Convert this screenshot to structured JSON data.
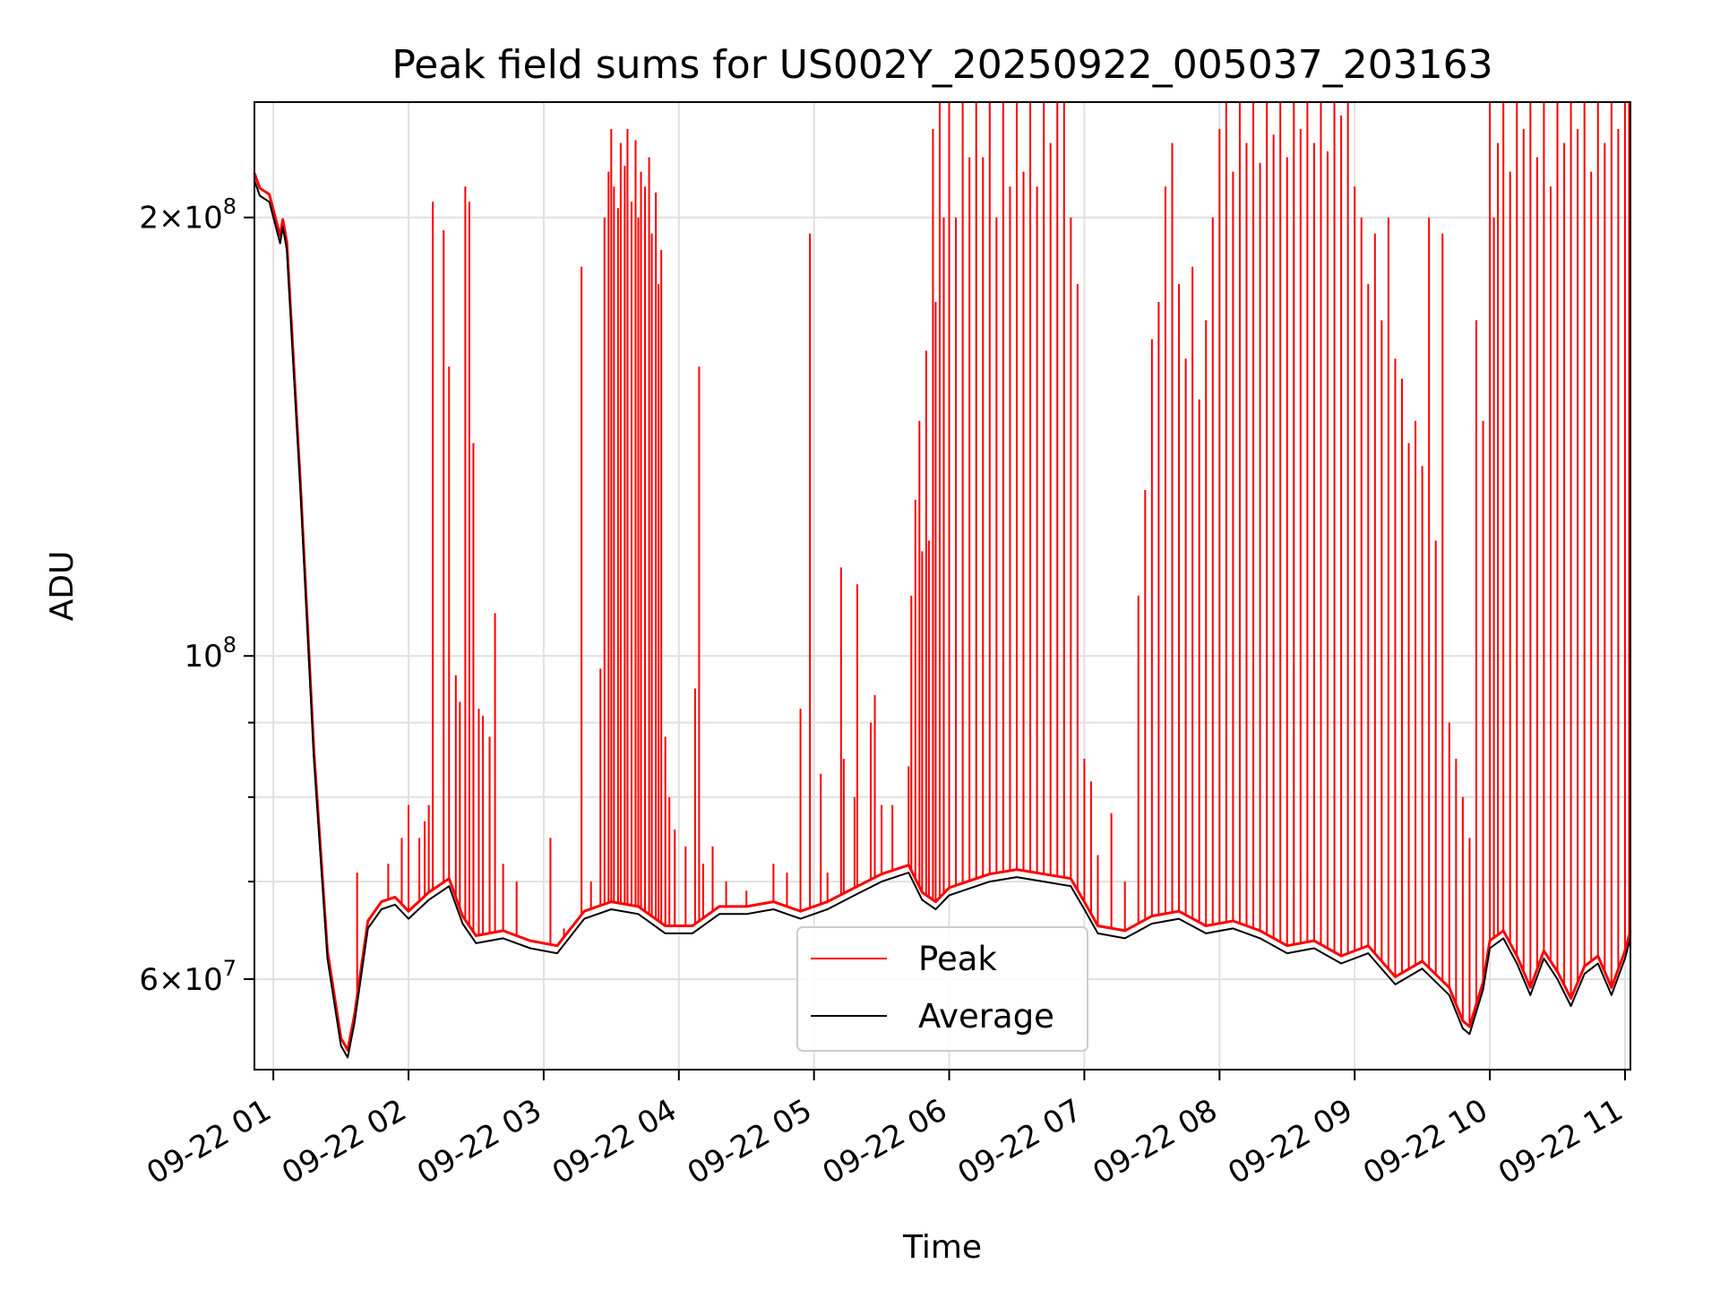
{
  "chart_data": {
    "type": "line",
    "title": "Peak field sums for US002Y_20250922_005037_203163",
    "xlabel": "Time",
    "ylabel": "ADU",
    "yscale": "log",
    "xlim": [
      0.86,
      11.04
    ],
    "ylim": [
      52000000,
      240000000
    ],
    "x_ticks": [
      {
        "value": 1,
        "label": "09-22 01"
      },
      {
        "value": 2,
        "label": "09-22 02"
      },
      {
        "value": 3,
        "label": "09-22 03"
      },
      {
        "value": 4,
        "label": "09-22 04"
      },
      {
        "value": 5,
        "label": "09-22 05"
      },
      {
        "value": 6,
        "label": "09-22 06"
      },
      {
        "value": 7,
        "label": "09-22 07"
      },
      {
        "value": 8,
        "label": "09-22 08"
      },
      {
        "value": 9,
        "label": "09-22 09"
      },
      {
        "value": 10,
        "label": "09-22 10"
      },
      {
        "value": 11,
        "label": "09-22 11"
      }
    ],
    "y_ticks_major": [
      {
        "value": 60000000,
        "label_base": "6×10",
        "label_exp": "7"
      },
      {
        "value": 100000000,
        "label_base": "10",
        "label_exp": "8"
      },
      {
        "value": 200000000,
        "label_base": "2×10",
        "label_exp": "8"
      }
    ],
    "y_ticks_minor": [
      70000000,
      80000000,
      90000000
    ],
    "grid": true,
    "legend_position": "lower-center",
    "series": [
      {
        "name": "Average",
        "color": "#000000",
        "points": [
          [
            0.86,
            212000000
          ],
          [
            0.9,
            207000000
          ],
          [
            0.97,
            205000000
          ],
          [
            1.05,
            192000000
          ],
          [
            1.07,
            197000000
          ],
          [
            1.1,
            190000000
          ],
          [
            1.2,
            130000000
          ],
          [
            1.3,
            85000000
          ],
          [
            1.4,
            62000000
          ],
          [
            1.5,
            54000000
          ],
          [
            1.55,
            53000000
          ],
          [
            1.6,
            56000000
          ],
          [
            1.7,
            65000000
          ],
          [
            1.8,
            67000000
          ],
          [
            1.9,
            67500000
          ],
          [
            2.0,
            66000000
          ],
          [
            2.15,
            68000000
          ],
          [
            2.3,
            69500000
          ],
          [
            2.4,
            65500000
          ],
          [
            2.5,
            63500000
          ],
          [
            2.7,
            64000000
          ],
          [
            2.9,
            63000000
          ],
          [
            3.1,
            62500000
          ],
          [
            3.3,
            66000000
          ],
          [
            3.5,
            67000000
          ],
          [
            3.7,
            66500000
          ],
          [
            3.9,
            64500000
          ],
          [
            4.1,
            64500000
          ],
          [
            4.3,
            66500000
          ],
          [
            4.5,
            66500000
          ],
          [
            4.7,
            67000000
          ],
          [
            4.9,
            66000000
          ],
          [
            5.1,
            67000000
          ],
          [
            5.3,
            68500000
          ],
          [
            5.5,
            70000000
          ],
          [
            5.7,
            71000000
          ],
          [
            5.8,
            68000000
          ],
          [
            5.9,
            67000000
          ],
          [
            6.0,
            68500000
          ],
          [
            6.1,
            69000000
          ],
          [
            6.3,
            70000000
          ],
          [
            6.5,
            70500000
          ],
          [
            6.7,
            70000000
          ],
          [
            6.9,
            69500000
          ],
          [
            7.0,
            67000000
          ],
          [
            7.1,
            64500000
          ],
          [
            7.3,
            64000000
          ],
          [
            7.5,
            65500000
          ],
          [
            7.7,
            66000000
          ],
          [
            7.9,
            64500000
          ],
          [
            8.1,
            65000000
          ],
          [
            8.3,
            64000000
          ],
          [
            8.5,
            62500000
          ],
          [
            8.7,
            63000000
          ],
          [
            8.9,
            61500000
          ],
          [
            9.1,
            62500000
          ],
          [
            9.3,
            59500000
          ],
          [
            9.5,
            61000000
          ],
          [
            9.7,
            58500000
          ],
          [
            9.8,
            55500000
          ],
          [
            9.85,
            55000000
          ],
          [
            9.95,
            59000000
          ],
          [
            10.0,
            63000000
          ],
          [
            10.1,
            64000000
          ],
          [
            10.2,
            61500000
          ],
          [
            10.3,
            58500000
          ],
          [
            10.4,
            62000000
          ],
          [
            10.5,
            60000000
          ],
          [
            10.6,
            57500000
          ],
          [
            10.7,
            60500000
          ],
          [
            10.8,
            61500000
          ],
          [
            10.9,
            58500000
          ],
          [
            11.0,
            62000000
          ],
          [
            11.04,
            64000000
          ]
        ]
      },
      {
        "name": "Peak",
        "color": "#ff0000",
        "baseline_offset": 1.012,
        "spikes": [
          [
            1.62,
            71000000
          ],
          [
            1.85,
            72000000
          ],
          [
            1.95,
            75000000
          ],
          [
            2.0,
            79000000
          ],
          [
            2.08,
            75000000
          ],
          [
            2.12,
            77000000
          ],
          [
            2.15,
            79000000
          ],
          [
            2.18,
            205000000
          ],
          [
            2.26,
            196000000
          ],
          [
            2.3,
            158000000
          ],
          [
            2.35,
            97000000
          ],
          [
            2.38,
            93000000
          ],
          [
            2.42,
            210000000
          ],
          [
            2.45,
            205000000
          ],
          [
            2.48,
            140000000
          ],
          [
            2.52,
            92000000
          ],
          [
            2.55,
            91000000
          ],
          [
            2.6,
            88000000
          ],
          [
            2.64,
            107000000
          ],
          [
            2.7,
            72000000
          ],
          [
            2.8,
            70000000
          ],
          [
            3.05,
            75000000
          ],
          [
            3.15,
            65000000
          ],
          [
            3.28,
            185000000
          ],
          [
            3.35,
            70000000
          ],
          [
            3.42,
            98000000
          ],
          [
            3.45,
            200000000
          ],
          [
            3.48,
            215000000
          ],
          [
            3.5,
            230000000
          ],
          [
            3.52,
            210000000
          ],
          [
            3.55,
            203000000
          ],
          [
            3.57,
            225000000
          ],
          [
            3.6,
            217000000
          ],
          [
            3.62,
            230000000
          ],
          [
            3.65,
            205000000
          ],
          [
            3.68,
            226000000
          ],
          [
            3.7,
            200000000
          ],
          [
            3.72,
            215000000
          ],
          [
            3.75,
            210000000
          ],
          [
            3.78,
            220000000
          ],
          [
            3.8,
            195000000
          ],
          [
            3.83,
            208000000
          ],
          [
            3.85,
            180000000
          ],
          [
            3.87,
            190000000
          ],
          [
            3.9,
            88000000
          ],
          [
            3.93,
            80000000
          ],
          [
            3.97,
            76000000
          ],
          [
            4.05,
            74000000
          ],
          [
            4.12,
            95000000
          ],
          [
            4.15,
            158000000
          ],
          [
            4.18,
            72000000
          ],
          [
            4.25,
            74000000
          ],
          [
            4.35,
            70000000
          ],
          [
            4.5,
            69000000
          ],
          [
            4.7,
            72000000
          ],
          [
            4.8,
            71000000
          ],
          [
            4.9,
            92000000
          ],
          [
            4.97,
            195000000
          ],
          [
            5.05,
            83000000
          ],
          [
            5.1,
            71000000
          ],
          [
            5.2,
            115000000
          ],
          [
            5.22,
            85000000
          ],
          [
            5.3,
            80000000
          ],
          [
            5.32,
            112000000
          ],
          [
            5.42,
            90000000
          ],
          [
            5.45,
            94000000
          ],
          [
            5.5,
            79000000
          ],
          [
            5.58,
            79000000
          ],
          [
            5.7,
            84000000
          ],
          [
            5.72,
            110000000
          ],
          [
            5.75,
            128000000
          ],
          [
            5.78,
            145000000
          ],
          [
            5.8,
            118000000
          ],
          [
            5.83,
            162000000
          ],
          [
            5.85,
            120000000
          ],
          [
            5.88,
            230000000
          ],
          [
            5.9,
            175000000
          ],
          [
            5.93,
            240000000
          ],
          [
            5.96,
            200000000
          ],
          [
            6.0,
            240000000
          ],
          [
            6.05,
            200000000
          ],
          [
            6.1,
            240000000
          ],
          [
            6.15,
            220000000
          ],
          [
            6.2,
            240000000
          ],
          [
            6.25,
            220000000
          ],
          [
            6.3,
            240000000
          ],
          [
            6.35,
            200000000
          ],
          [
            6.4,
            240000000
          ],
          [
            6.45,
            210000000
          ],
          [
            6.5,
            240000000
          ],
          [
            6.55,
            215000000
          ],
          [
            6.6,
            240000000
          ],
          [
            6.65,
            210000000
          ],
          [
            6.7,
            240000000
          ],
          [
            6.75,
            225000000
          ],
          [
            6.8,
            240000000
          ],
          [
            6.85,
            240000000
          ],
          [
            6.9,
            200000000
          ],
          [
            6.95,
            180000000
          ],
          [
            7.0,
            85000000
          ],
          [
            7.05,
            82000000
          ],
          [
            7.1,
            73000000
          ],
          [
            7.2,
            78000000
          ],
          [
            7.3,
            70000000
          ],
          [
            7.4,
            110000000
          ],
          [
            7.45,
            130000000
          ],
          [
            7.5,
            165000000
          ],
          [
            7.55,
            175000000
          ],
          [
            7.6,
            210000000
          ],
          [
            7.65,
            225000000
          ],
          [
            7.7,
            180000000
          ],
          [
            7.75,
            160000000
          ],
          [
            7.8,
            185000000
          ],
          [
            7.85,
            150000000
          ],
          [
            7.9,
            170000000
          ],
          [
            7.95,
            200000000
          ],
          [
            8.0,
            230000000
          ],
          [
            8.05,
            240000000
          ],
          [
            8.1,
            215000000
          ],
          [
            8.15,
            240000000
          ],
          [
            8.2,
            225000000
          ],
          [
            8.25,
            240000000
          ],
          [
            8.3,
            218000000
          ],
          [
            8.35,
            240000000
          ],
          [
            8.4,
            228000000
          ],
          [
            8.45,
            240000000
          ],
          [
            8.5,
            220000000
          ],
          [
            8.55,
            240000000
          ],
          [
            8.6,
            230000000
          ],
          [
            8.65,
            240000000
          ],
          [
            8.7,
            225000000
          ],
          [
            8.75,
            240000000
          ],
          [
            8.8,
            222000000
          ],
          [
            8.85,
            240000000
          ],
          [
            8.9,
            235000000
          ],
          [
            8.95,
            240000000
          ],
          [
            9.0,
            210000000
          ],
          [
            9.05,
            200000000
          ],
          [
            9.1,
            180000000
          ],
          [
            9.15,
            195000000
          ],
          [
            9.2,
            170000000
          ],
          [
            9.25,
            200000000
          ],
          [
            9.3,
            160000000
          ],
          [
            9.35,
            155000000
          ],
          [
            9.4,
            140000000
          ],
          [
            9.45,
            145000000
          ],
          [
            9.5,
            135000000
          ],
          [
            9.55,
            200000000
          ],
          [
            9.6,
            120000000
          ],
          [
            9.65,
            195000000
          ],
          [
            9.7,
            90000000
          ],
          [
            9.75,
            85000000
          ],
          [
            9.8,
            80000000
          ],
          [
            9.85,
            75000000
          ],
          [
            9.9,
            170000000
          ],
          [
            9.95,
            145000000
          ],
          [
            10.0,
            240000000
          ],
          [
            10.03,
            200000000
          ],
          [
            10.06,
            225000000
          ],
          [
            10.1,
            240000000
          ],
          [
            10.15,
            215000000
          ],
          [
            10.2,
            240000000
          ],
          [
            10.25,
            230000000
          ],
          [
            10.3,
            240000000
          ],
          [
            10.35,
            220000000
          ],
          [
            10.4,
            240000000
          ],
          [
            10.45,
            210000000
          ],
          [
            10.5,
            240000000
          ],
          [
            10.55,
            225000000
          ],
          [
            10.6,
            240000000
          ],
          [
            10.65,
            230000000
          ],
          [
            10.7,
            240000000
          ],
          [
            10.75,
            215000000
          ],
          [
            10.8,
            240000000
          ],
          [
            10.85,
            225000000
          ],
          [
            10.9,
            240000000
          ],
          [
            10.95,
            230000000
          ],
          [
            11.0,
            240000000
          ],
          [
            11.03,
            240000000
          ]
        ]
      }
    ],
    "legend": [
      {
        "label": "Peak",
        "color": "#ff0000"
      },
      {
        "label": "Average",
        "color": "#000000"
      }
    ]
  }
}
